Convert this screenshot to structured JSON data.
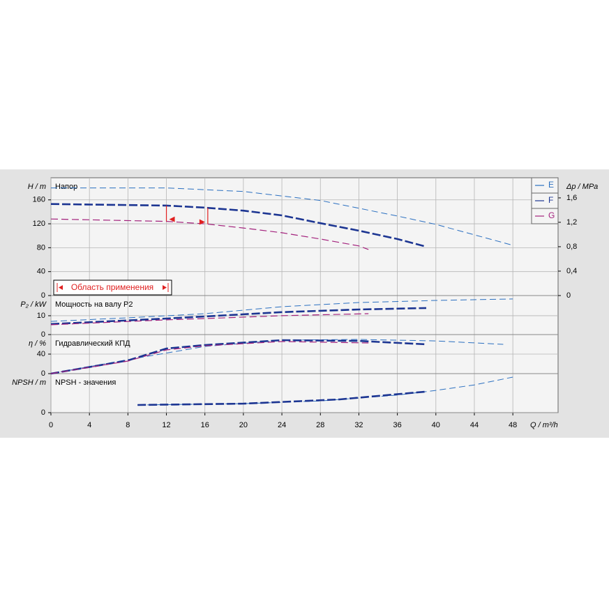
{
  "chart_data": [
    {
      "type": "line",
      "title": "Напор",
      "y_label": "H / m",
      "ylim": [
        0,
        197
      ],
      "yticks": [
        0,
        40,
        80,
        120,
        160
      ],
      "y2_label": "Δp / MPa",
      "y2lim": [
        0,
        1.93
      ],
      "y2ticks": [
        0,
        {
          "value": 0.4,
          "label": "0,4"
        },
        {
          "value": 0.8,
          "label": "0,8"
        },
        {
          "value": 1.2,
          "label": "1,2"
        },
        {
          "value": 1.6,
          "label": "1,6"
        }
      ],
      "grid": true,
      "legend": "upper right",
      "range": {
        "label": "Область применения",
        "x": [
          12,
          16.3
        ]
      },
      "series": [
        {
          "name": "E",
          "color": "#2a6fc0",
          "x": [
            0,
            12,
            20,
            28,
            36,
            40,
            44,
            48
          ],
          "values": [
            180,
            180,
            174,
            159,
            133,
            119,
            101.5,
            84
          ]
        },
        {
          "name": "F",
          "color": "#1c3592",
          "x": [
            0,
            12,
            16,
            20,
            24,
            28,
            32,
            36,
            39
          ],
          "values": [
            153,
            150.5,
            147,
            142,
            134,
            121,
            108.5,
            94.5,
            81.7
          ]
        },
        {
          "name": "G",
          "color": "#a3217c",
          "x": [
            0,
            12,
            16,
            20,
            24,
            28,
            32,
            33
          ],
          "values": [
            128,
            124,
            120,
            113,
            105,
            94.5,
            83,
            77
          ]
        }
      ]
    },
    {
      "type": "line",
      "title": "Мощность на валу P2",
      "y_label": "P₂ / kW",
      "ylim": [
        0,
        20.7
      ],
      "yticks": [
        0,
        10
      ],
      "grid": true,
      "series": [
        {
          "name": "E",
          "color": "#2a6fc0",
          "x": [
            0,
            8,
            16,
            24,
            32,
            40,
            48
          ],
          "values": [
            7,
            8.9,
            11.1,
            14.8,
            17,
            18.1,
            18.9
          ]
        },
        {
          "name": "F",
          "color": "#1c3592",
          "x": [
            0,
            12,
            16,
            24,
            32,
            39
          ],
          "values": [
            5.6,
            8.5,
            9.6,
            11.9,
            13.3,
            14.1
          ]
        },
        {
          "name": "G",
          "color": "#a3217c",
          "x": [
            0,
            12,
            16,
            24,
            33
          ],
          "values": [
            5.2,
            7.8,
            8.5,
            10,
            11.1
          ]
        }
      ]
    },
    {
      "type": "line",
      "title": "Гидравлический КПД",
      "y_label": "η / %",
      "ylim": [
        0,
        80
      ],
      "yticks": [
        0,
        40
      ],
      "grid": true,
      "series": [
        {
          "name": "E",
          "color": "#2a6fc0",
          "x": [
            0,
            8,
            16,
            24,
            32,
            40,
            47
          ],
          "values": [
            0,
            28.6,
            55.7,
            68.6,
            70,
            67,
            60
          ]
        },
        {
          "name": "F",
          "color": "#1c3592",
          "x": [
            0,
            8,
            12,
            16,
            24,
            32,
            39
          ],
          "values": [
            0,
            27,
            51.4,
            58.6,
            68.6,
            67,
            60
          ]
        },
        {
          "name": "G",
          "color": "#a3217c",
          "x": [
            0,
            8,
            12,
            16,
            24,
            33
          ],
          "values": [
            0,
            25.7,
            48.6,
            57,
            65.7,
            62.9
          ]
        }
      ]
    },
    {
      "type": "line",
      "title": "NPSH - значения",
      "y_label": "NPSH / m",
      "ylim": [
        0,
        10
      ],
      "yticks": [
        0
      ],
      "grid": true,
      "x_label": "Q / m³/h",
      "xlim": [
        0,
        52.7
      ],
      "xticks": [
        0,
        4,
        8,
        12,
        16,
        20,
        24,
        28,
        32,
        36,
        40,
        44,
        48
      ],
      "series": [
        {
          "name": "E",
          "color": "#2a6fc0",
          "x": [
            9,
            20,
            28,
            36,
            40,
            44,
            48
          ],
          "values": [
            1.96,
            2.3,
            3.0,
            4.5,
            5.7,
            7.1,
            9.1
          ]
        },
        {
          "name": "F",
          "color": "#1c3592",
          "x": [
            9,
            20,
            30,
            39
          ],
          "values": [
            1.96,
            2.3,
            3.4,
            5.4
          ]
        }
      ]
    }
  ]
}
